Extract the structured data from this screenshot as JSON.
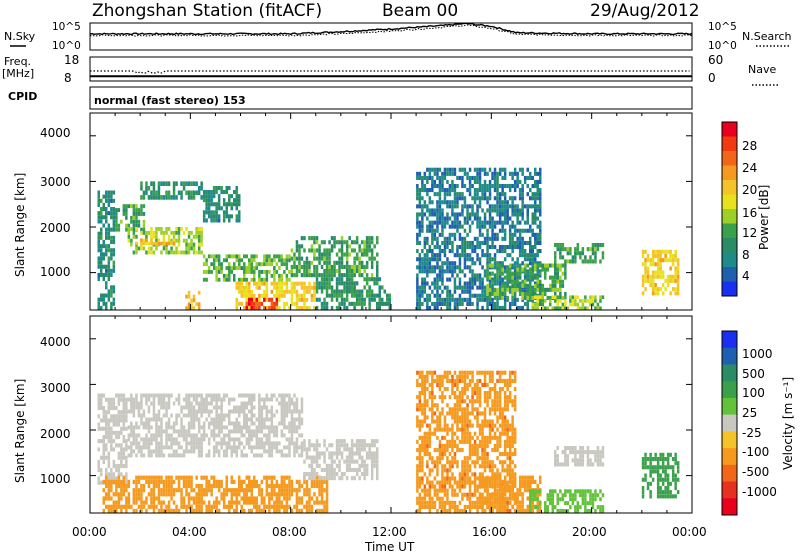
{
  "header": {
    "station": "Zhongshan Station (fitACF)",
    "beam": "Beam 00",
    "date": "29/Aug/2012"
  },
  "top_panels": {
    "nsky_label": "N.Sky",
    "nsky_ticks": [
      "10^5",
      "10^0"
    ],
    "nsearch_label": "N.Search",
    "nsearch_ticks": [
      "10^5",
      "10^0"
    ],
    "freq_label": "Freq.",
    "freq_unit": "[MHz]",
    "freq_ticks": [
      "18",
      "8"
    ],
    "nave_label": "Nave",
    "nave_ticks": [
      "60",
      "0"
    ],
    "cpid_label": "CPID",
    "cpid_value": "normal (fast stereo) 153"
  },
  "x_axis": {
    "title": "Time UT",
    "ticks": [
      "00:00",
      "04:00",
      "08:00",
      "12:00",
      "16:00",
      "20:00",
      "00:00"
    ]
  },
  "power_panel": {
    "ylabel": "Slant Range [km]",
    "yticks": [
      "4000",
      "3000",
      "2000",
      "1000"
    ],
    "colorbar_label": "Power [dB]",
    "colorbar_ticks": [
      "28",
      "24",
      "20",
      "16",
      "12",
      "8",
      "4"
    ],
    "colorbar_colors": [
      "#e8001c",
      "#f03a10",
      "#f2661a",
      "#f59a1e",
      "#f5c22a",
      "#e8e21e",
      "#9ccf2a",
      "#3aa04a",
      "#2a8c64",
      "#1f8a8a",
      "#1f5fb0",
      "#1b2ff0"
    ]
  },
  "velocity_panel": {
    "ylabel": "Slant Range [km]",
    "yticks": [
      "4000",
      "3000",
      "2000",
      "1000"
    ],
    "colorbar_label": "Velocity [m s⁻¹]",
    "colorbar_ticks": [
      "1000",
      "500",
      "100",
      "25",
      "-25",
      "-100",
      "-500",
      "-1000"
    ],
    "colorbar_colors": [
      "#1b2ff0",
      "#1f5fb0",
      "#2a8c64",
      "#3aa04a",
      "#62c23a",
      "#c8c8c0",
      "#f5c22a",
      "#f59a1e",
      "#f2661a",
      "#e83020",
      "#e8001c"
    ]
  },
  "chart_data": [
    {
      "type": "line",
      "title": "N.Sky / N.Search",
      "x": [
        "00:00",
        "04:00",
        "08:00",
        "10:00",
        "12:00",
        "14:00",
        "15:00",
        "16:00",
        "17:00",
        "20:00",
        "00:00"
      ],
      "series": [
        {
          "name": "N.Sky",
          "values": [
            3.0,
            3.0,
            3.0,
            3.4,
            3.9,
            4.5,
            4.9,
            4.4,
            3.2,
            3.0,
            3.0
          ]
        },
        {
          "name": "N.Search",
          "values": [
            2.7,
            2.7,
            2.7,
            3.0,
            3.5,
            4.2,
            4.6,
            4.0,
            2.9,
            2.7,
            2.7
          ]
        }
      ],
      "ylim": [
        0,
        5
      ]
    },
    {
      "type": "line",
      "title": "Freq. / Nave",
      "x": [
        "00:00",
        "02:00",
        "04:00",
        "08:00",
        "12:00",
        "16:00",
        "20:00",
        "00:00"
      ],
      "series": [
        {
          "name": "Freq.",
          "values": [
            10,
            10,
            10,
            10,
            10,
            10,
            10,
            10
          ]
        },
        {
          "name": "Nave",
          "values": [
            25,
            22,
            25,
            25,
            25,
            25,
            25,
            25
          ]
        }
      ]
    },
    {
      "type": "heatmap",
      "title": "Power [dB]",
      "xlim_hours": [
        0,
        24
      ],
      "ylim_km": [
        180,
        4500
      ],
      "regions": [
        {
          "t": [
            0.3,
            1.0
          ],
          "r": [
            180,
            2800
          ],
          "v": 7
        },
        {
          "t": [
            1.0,
            2.2
          ],
          "r": [
            1900,
            2500
          ],
          "v": 10
        },
        {
          "t": [
            1.5,
            4.5
          ],
          "r": [
            1400,
            2000
          ],
          "v": 14
        },
        {
          "t": [
            1.8,
            3.5
          ],
          "r": [
            1600,
            1750
          ],
          "v": 20
        },
        {
          "t": [
            2.0,
            4.5
          ],
          "r": [
            2600,
            3000
          ],
          "v": 8
        },
        {
          "t": [
            4.5,
            8.0
          ],
          "r": [
            800,
            1400
          ],
          "v": 12
        },
        {
          "t": [
            4.5,
            6.0
          ],
          "r": [
            2100,
            2900
          ],
          "v": 7
        },
        {
          "t": [
            5.8,
            9.0
          ],
          "r": [
            180,
            800
          ],
          "v": 18
        },
        {
          "t": [
            6.2,
            7.5
          ],
          "r": [
            180,
            450
          ],
          "v": 27
        },
        {
          "t": [
            3.8,
            4.4
          ],
          "r": [
            180,
            600
          ],
          "v": 20
        },
        {
          "t": [
            8.0,
            11.5
          ],
          "r": [
            900,
            1800
          ],
          "v": 10
        },
        {
          "t": [
            9.0,
            12.0
          ],
          "r": [
            180,
            900
          ],
          "v": 9
        },
        {
          "t": [
            13.0,
            18.0
          ],
          "r": [
            180,
            3300
          ],
          "v": 5
        },
        {
          "t": [
            15.8,
            19.0
          ],
          "r": [
            400,
            1200
          ],
          "v": 11
        },
        {
          "t": [
            17.5,
            20.5
          ],
          "r": [
            180,
            500
          ],
          "v": 14
        },
        {
          "t": [
            18.5,
            20.5
          ],
          "r": [
            1200,
            1650
          ],
          "v": 10
        },
        {
          "t": [
            22.0,
            23.5
          ],
          "r": [
            500,
            1500
          ],
          "v": 18
        }
      ]
    },
    {
      "type": "heatmap",
      "title": "Velocity [m s⁻¹]",
      "xlim_hours": [
        0,
        24
      ],
      "ylim_km": [
        180,
        4500
      ],
      "regions": [
        {
          "t": [
            0.3,
            1.5
          ],
          "r": [
            800,
            2800
          ],
          "v": 0
        },
        {
          "t": [
            1.5,
            8.5
          ],
          "r": [
            1400,
            2800
          ],
          "v": 0
        },
        {
          "t": [
            0.5,
            4.0
          ],
          "r": [
            180,
            1000
          ],
          "v": -150
        },
        {
          "t": [
            4.0,
            9.5
          ],
          "r": [
            180,
            1000
          ],
          "v": -200
        },
        {
          "t": [
            8.5,
            11.5
          ],
          "r": [
            900,
            1800
          ],
          "v": 20
        },
        {
          "t": [
            13.0,
            17.0
          ],
          "r": [
            180,
            3300
          ],
          "v": -400
        },
        {
          "t": [
            15.5,
            18.0
          ],
          "r": [
            180,
            1000
          ],
          "v": -150
        },
        {
          "t": [
            17.5,
            20.5
          ],
          "r": [
            180,
            700
          ],
          "v": 50
        },
        {
          "t": [
            18.5,
            20.5
          ],
          "r": [
            1200,
            1650
          ],
          "v": 0
        },
        {
          "t": [
            22.0,
            23.5
          ],
          "r": [
            500,
            1500
          ],
          "v": 300
        }
      ]
    }
  ]
}
